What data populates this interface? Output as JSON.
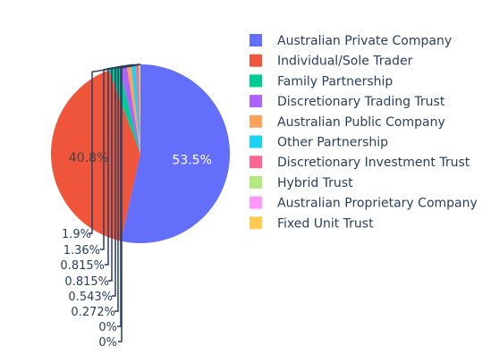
{
  "chart_data": {
    "type": "pie",
    "categories": [
      "Australian Private Company",
      "Individual/Sole Trader",
      "Family Partnership",
      "Discretionary Trading Trust",
      "Australian Public Company",
      "Other Partnership",
      "Discretionary Investment Trust",
      "Hybrid Trust",
      "Australian Proprietary Company",
      "Fixed Unit Trust"
    ],
    "values": [
      53.5,
      40.8,
      1.9,
      1.36,
      0.815,
      0.815,
      0.543,
      0.272,
      0,
      0
    ],
    "labels": [
      "53.5%",
      "40.8%",
      "1.9%",
      "1.36%",
      "0.815%",
      "0.815%",
      "0.543%",
      "0.272%",
      "0%",
      "0%"
    ],
    "colors": [
      "#636efa",
      "#ef553b",
      "#00cc96",
      "#ab63fa",
      "#ffa15a",
      "#19d3f3",
      "#ff6692",
      "#b6e880",
      "#ff97ff",
      "#fecb52"
    ],
    "legend_position": "right",
    "sort": "descending",
    "direction": "clockwise"
  }
}
